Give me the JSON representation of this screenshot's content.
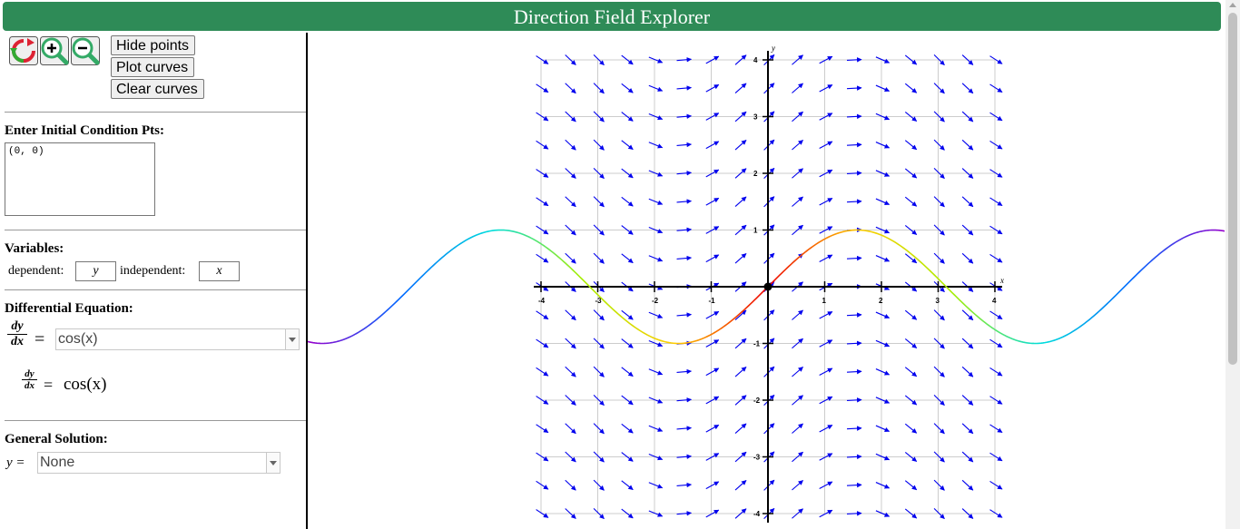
{
  "app": {
    "title": "Direction Field Explorer"
  },
  "toolbar": {
    "icons": [
      "reset-view-icon",
      "zoom-in-icon",
      "zoom-out-icon"
    ],
    "hide_points": "Hide points",
    "plot_curves": "Plot curves",
    "clear_curves": "Clear curves"
  },
  "initial_conditions": {
    "label": "Enter Initial Condition Pts:",
    "value": "(0, 0)"
  },
  "variables": {
    "label": "Variables:",
    "dependent_label": "dependent:",
    "dependent": "y",
    "independent_label": "independent:",
    "independent": "x"
  },
  "equation": {
    "label": "Differential Equation:",
    "lhs_num": "dy",
    "lhs_den": "dx",
    "equals": "=",
    "value": "cos(x)",
    "rendered_rhs": "cos(x)"
  },
  "general_solution": {
    "label": "General Solution:",
    "prefix": "y =",
    "value": "None"
  },
  "colors": {
    "title_bar": "#2e8b57",
    "arrow": "#0000ee",
    "grid": "#cccccc"
  },
  "chart_data": {
    "type": "direction_field",
    "equation": "dy/dx = cos(x)",
    "xlabel": "x",
    "ylabel": "y",
    "xlim": [
      -4,
      4
    ],
    "ylim": [
      -4,
      4
    ],
    "x_ticks": [
      -4,
      -3,
      -2,
      -1,
      1,
      2,
      3,
      4
    ],
    "y_ticks": [
      -4,
      -3,
      -2,
      -1,
      1,
      2,
      3,
      4
    ],
    "grid": true,
    "initial_points": [
      [
        0,
        0
      ]
    ],
    "solution_curve": "y = sin(x)"
  }
}
